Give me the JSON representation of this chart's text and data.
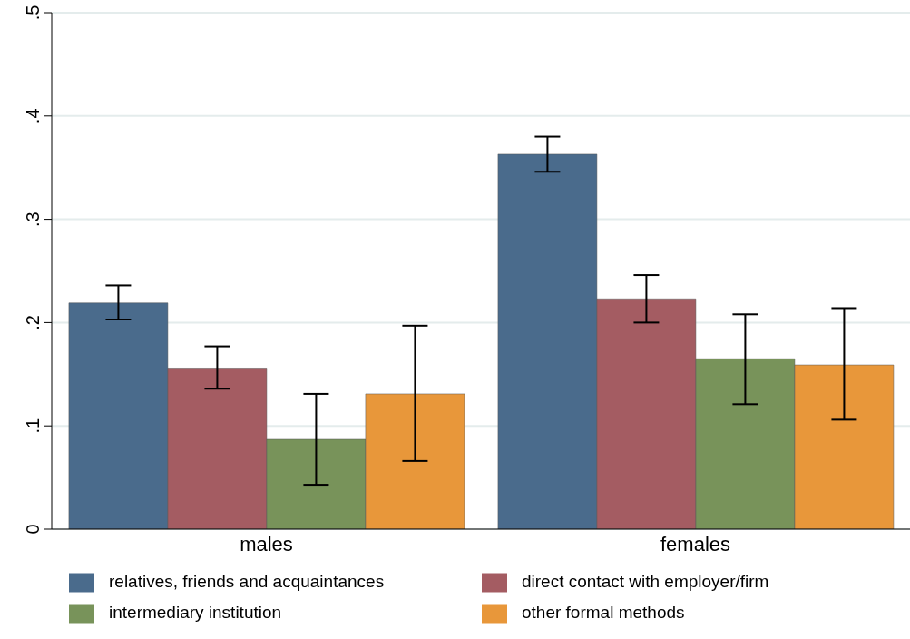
{
  "chart_data": {
    "type": "bar",
    "categories": [
      "males",
      "females"
    ],
    "series": [
      {
        "name": "relatives, friends and acquaintances",
        "color": "#4a6b8c",
        "values": [
          0.219,
          0.363
        ],
        "errors": [
          [
            0.203,
            0.236
          ],
          [
            0.346,
            0.38
          ]
        ]
      },
      {
        "name": "direct contact with employer/firm",
        "color": "#a45c62",
        "values": [
          0.156,
          0.223
        ],
        "errors": [
          [
            0.136,
            0.177
          ],
          [
            0.2,
            0.246
          ]
        ]
      },
      {
        "name": "intermediary institution",
        "color": "#78935a",
        "values": [
          0.087,
          0.165
        ],
        "errors": [
          [
            0.043,
            0.131
          ],
          [
            0.121,
            0.208
          ]
        ]
      },
      {
        "name": "other formal methods",
        "color": "#e8973a",
        "values": [
          0.131,
          0.159
        ],
        "errors": [
          [
            0.066,
            0.197
          ],
          [
            0.106,
            0.214
          ]
        ]
      }
    ],
    "ylim": [
      0,
      0.5
    ],
    "yticks": [
      {
        "value": 0,
        "label": "0"
      },
      {
        "value": 0.1,
        "label": ".1"
      },
      {
        "value": 0.2,
        "label": ".2"
      },
      {
        "value": 0.3,
        "label": ".3"
      },
      {
        "value": 0.4,
        "label": ".4"
      },
      {
        "value": 0.5,
        "label": ".5"
      }
    ],
    "grid": "y",
    "legend": "bottom"
  }
}
